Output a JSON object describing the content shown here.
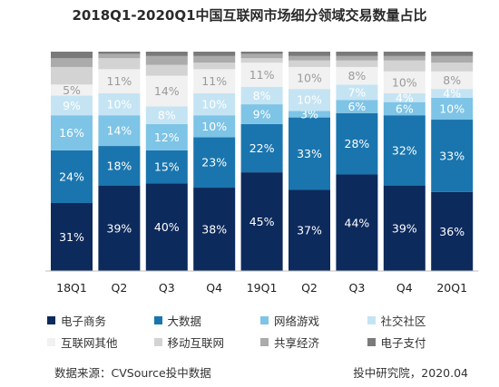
{
  "chart_data": {
    "type": "bar",
    "stacked": true,
    "title": "2018Q1-2020Q1中国互联网市场细分领域交易数量占比",
    "categories": [
      "18Q1",
      "Q2",
      "Q3",
      "Q4",
      "19Q1",
      "Q2",
      "Q3",
      "Q4",
      "20Q1"
    ],
    "series": [
      {
        "name": "电子商务",
        "color": "#0d2a5c",
        "values": [
          31,
          39,
          40,
          38,
          45,
          37,
          44,
          39,
          36
        ],
        "labels": [
          "31%",
          "39%",
          "40%",
          "38%",
          "45%",
          "37%",
          "44%",
          "39%",
          "36%"
        ]
      },
      {
        "name": "大数据",
        "color": "#1a75ae",
        "values": [
          24,
          18,
          15,
          23,
          22,
          33,
          28,
          32,
          33
        ],
        "labels": [
          "24%",
          "18%",
          "15%",
          "23%",
          "22%",
          "33%",
          "28%",
          "32%",
          "33%"
        ]
      },
      {
        "name": "网络游戏",
        "color": "#7ec4e6",
        "values": [
          16,
          14,
          12,
          10,
          9,
          3,
          6,
          6,
          10
        ],
        "labels": [
          "16%",
          "14%",
          "12%",
          "10%",
          "9%",
          "3%",
          "6%",
          "6%",
          "10%"
        ]
      },
      {
        "name": "社交社区",
        "color": "#c5e4f3",
        "values": [
          9,
          10,
          8,
          10,
          8,
          10,
          7,
          4,
          4
        ],
        "labels": [
          "9%",
          "10%",
          "8%",
          "10%",
          "8%",
          "10%",
          "7%",
          "4%",
          "4%"
        ]
      },
      {
        "name": "互联网其他",
        "color": "#f1f1f1",
        "values": [
          5,
          11,
          14,
          11,
          11,
          10,
          8,
          10,
          8
        ],
        "labels": [
          "5%",
          "11%",
          "14%",
          "11%",
          "11%",
          "10%",
          "8%",
          "10%",
          "8%"
        ]
      },
      {
        "name": "移动互联网",
        "color": "#d3d3d3",
        "values": [
          8,
          5,
          5,
          3,
          2,
          3,
          3,
          5,
          4
        ],
        "labels": [
          "",
          "",
          "",
          "",
          "",
          "",
          "",
          "",
          ""
        ]
      },
      {
        "name": "共享经济",
        "color": "#ababab",
        "values": [
          4,
          2,
          4,
          3,
          2,
          2,
          2,
          2,
          3
        ],
        "labels": [
          "",
          "",
          "",
          "",
          "",
          "",
          "",
          "",
          ""
        ]
      },
      {
        "name": "电子支付",
        "color": "#7a7a7a",
        "values": [
          3,
          1,
          2,
          2,
          1,
          2,
          2,
          2,
          2
        ],
        "labels": [
          "",
          "",
          "",
          "",
          "",
          "",
          "",
          "",
          ""
        ]
      }
    ],
    "ylim": [
      0,
      100
    ],
    "grid": false,
    "legend_position": "bottom"
  },
  "footer": {
    "source": "数据来源：CVSource投中数据",
    "credit": "投中研究院，2020.04"
  }
}
